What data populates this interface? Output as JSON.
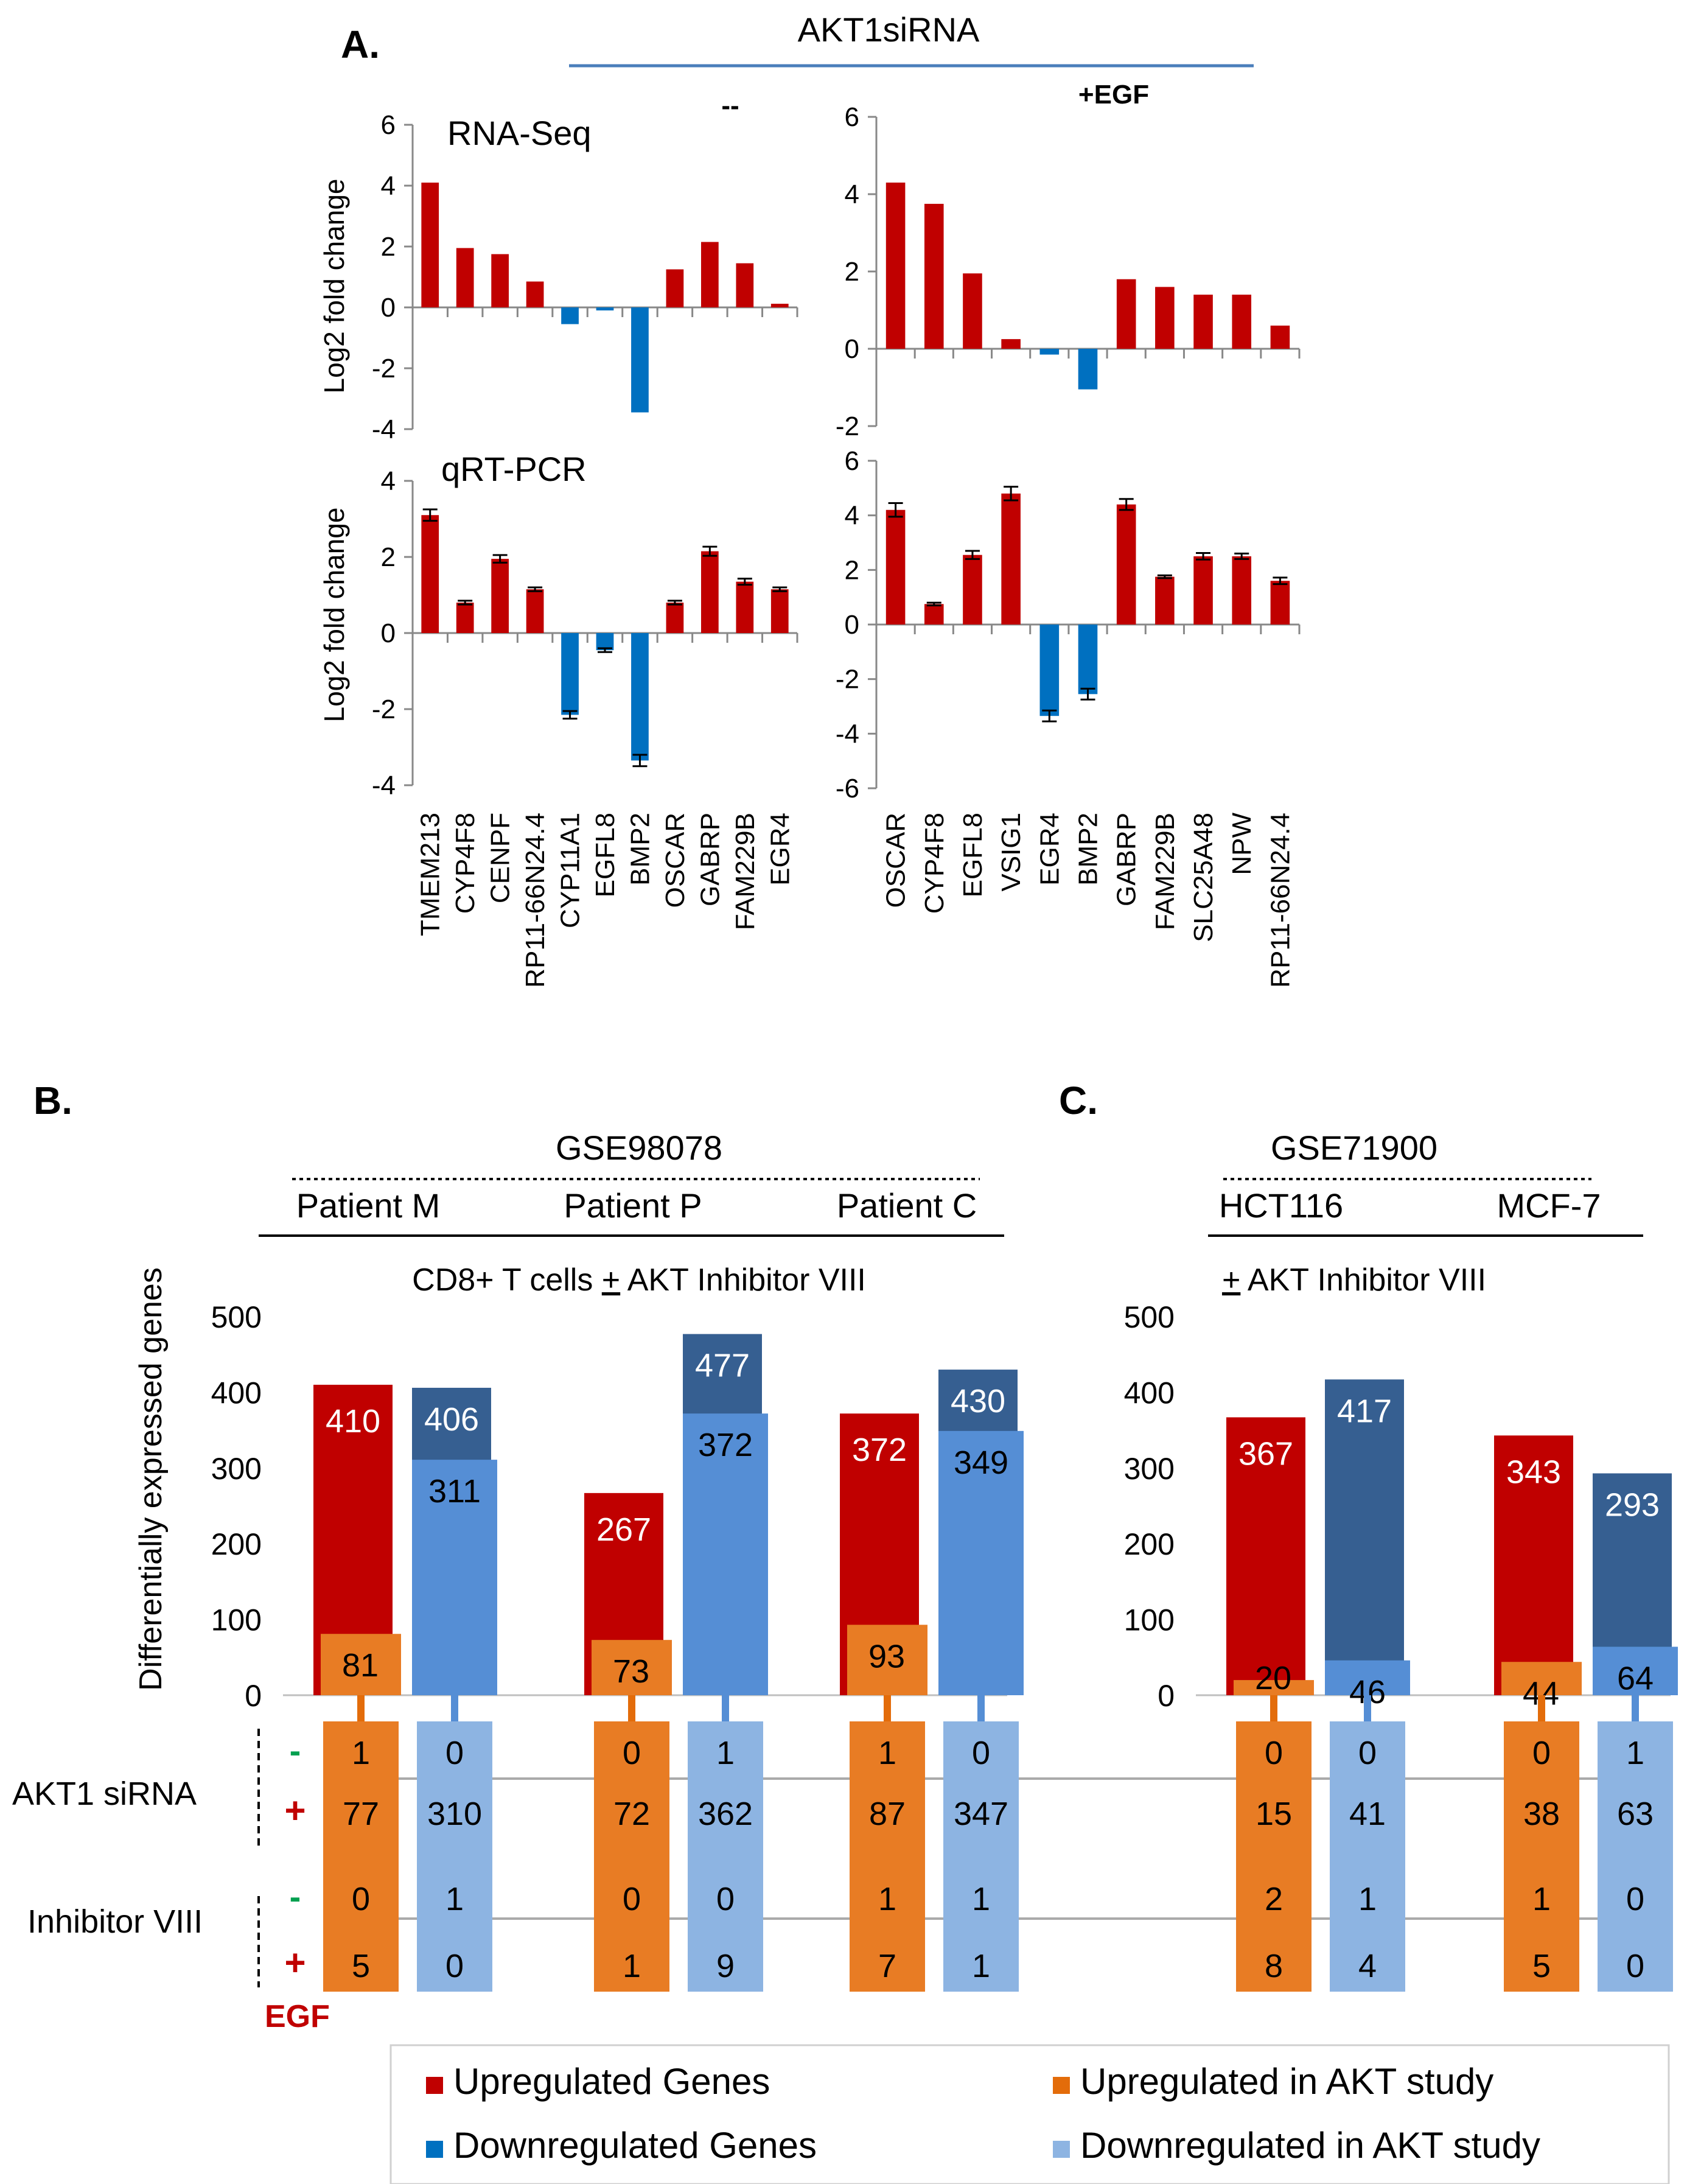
{
  "colors": {
    "up": "#c00000",
    "down": "#0070c0",
    "up_dark": "#c00000",
    "down_dark": "#365f91",
    "up_akt": "#e36c0a",
    "down_akt": "#558ed5",
    "up_akt_light": "#e87c24",
    "down_akt_light": "#8db4e2",
    "axis": "#888888",
    "text": "#000000",
    "plus": "#c00000",
    "minus": "#00a050",
    "rule_blue": "#4a7ebb"
  },
  "panel_a": {
    "label": "A.",
    "header": "AKT1siRNA",
    "cond_left": "--",
    "cond_right": "+EGF",
    "ylabel": "Log2 fold change",
    "method_top": "RNA-Seq",
    "method_bottom": "qRT-PCR"
  },
  "panel_b": {
    "label": "B.",
    "dataset": "GSE98078",
    "groups": [
      "Patient M",
      "Patient P",
      "Patient C"
    ],
    "treatment": "CD8+ T cells + AKT Inhibitor VIII",
    "treatment_prefix": "CD8+ T cells ",
    "treatment_pm": "+",
    "treatment_suffix": " AKT Inhibitor VIII",
    "ylabel": "Differentially expressed genes"
  },
  "panel_c": {
    "label": "C.",
    "dataset": "GSE71900",
    "groups": [
      "HCT116",
      "MCF-7"
    ],
    "treatment_pm": "+",
    "treatment_suffix": " AKT Inhibitor VIII"
  },
  "row_labels": {
    "siRNA": "AKT1 siRNA",
    "inhibitor": "Inhibitor VIII",
    "minus": "-",
    "plus": "+",
    "egf": "EGF"
  },
  "legend": [
    {
      "label": "Upregulated Genes",
      "color_key": "up"
    },
    {
      "label": "Upregulated in AKT study",
      "color_key": "up_akt"
    },
    {
      "label": "Downregulated Genes",
      "color_key": "down"
    },
    {
      "label": "Downregulated in AKT study",
      "color_key": "down_akt_light"
    }
  ],
  "chart_data": [
    {
      "id": "rnaseq_minus",
      "type": "bar",
      "title": "RNA-Seq",
      "ylabel": "Log2 fold change",
      "ylim": [
        -4,
        6
      ],
      "yticks": [
        -4,
        -2,
        0,
        2,
        4,
        6
      ],
      "categories": [
        "TMEM213",
        "CYP4F8",
        "CENPF",
        "RP11-66N24.4",
        "CYP11A1",
        "EGFL8",
        "BMP2",
        "OSCAR",
        "GABRP",
        "FAM229B",
        "EGR4"
      ],
      "values": [
        4.1,
        1.95,
        1.75,
        0.85,
        -0.55,
        -0.1,
        -3.45,
        1.25,
        2.15,
        1.45,
        0.12
      ]
    },
    {
      "id": "rnaseq_egf",
      "type": "bar",
      "title": "",
      "ylim": [
        -2,
        6
      ],
      "yticks": [
        -2,
        0,
        2,
        4,
        6
      ],
      "categories": [
        "OSCAR",
        "CYP4F8",
        "EGFL8",
        "VSIG1",
        "EGR4",
        "BMP2",
        "GABRP",
        "FAM229B",
        "SLC25A48",
        "NPW",
        "RP11-66N24.4"
      ],
      "values": [
        4.3,
        3.75,
        1.95,
        0.25,
        -0.15,
        -1.05,
        1.8,
        1.6,
        1.4,
        1.4,
        0.6
      ]
    },
    {
      "id": "qpcr_minus",
      "type": "bar",
      "title": "qRT-PCR",
      "ylabel": "Log2 fold change",
      "ylim": [
        -4,
        4
      ],
      "yticks": [
        -4,
        -2,
        0,
        2,
        4
      ],
      "categories": [
        "TMEM213",
        "CYP4F8",
        "CENPF",
        "RP11-66N24.4",
        "CYP11A1",
        "EGFL8",
        "BMP2",
        "OSCAR",
        "GABRP",
        "FAM229B",
        "EGR4"
      ],
      "values": [
        3.1,
        0.8,
        1.95,
        1.15,
        -2.15,
        -0.45,
        -3.35,
        0.8,
        2.15,
        1.35,
        1.15
      ],
      "errors": [
        0.15,
        0.05,
        0.1,
        0.05,
        0.1,
        0.05,
        0.15,
        0.05,
        0.12,
        0.08,
        0.05
      ]
    },
    {
      "id": "qpcr_egf",
      "type": "bar",
      "title": "",
      "ylim": [
        -6,
        6
      ],
      "yticks": [
        -6,
        -4,
        -2,
        0,
        2,
        4,
        6
      ],
      "categories": [
        "OSCAR",
        "CYP4F8",
        "EGFL8",
        "VSIG1",
        "EGR4",
        "BMP2",
        "GABRP",
        "FAM229B",
        "SLC25A48",
        "NPW",
        "RP11-66N24.4"
      ],
      "values": [
        4.2,
        0.75,
        2.55,
        4.8,
        -3.35,
        -2.55,
        4.4,
        1.75,
        2.5,
        2.5,
        1.6
      ],
      "errors": [
        0.25,
        0.05,
        0.15,
        0.25,
        0.2,
        0.2,
        0.2,
        0.05,
        0.12,
        0.1,
        0.12
      ]
    },
    {
      "id": "deg_gse98078",
      "type": "bar",
      "title": "GSE98078",
      "ylabel": "Differentially expressed genes",
      "ylim": [
        0,
        500
      ],
      "yticks": [
        0,
        100,
        200,
        300,
        400,
        500
      ],
      "categories": [
        "Patient M",
        "Patient P",
        "Patient C"
      ],
      "series": [
        {
          "name": "Upregulated Genes",
          "values": [
            410,
            267,
            372
          ]
        },
        {
          "name": "Downregulated Genes",
          "values": [
            406,
            477,
            430
          ]
        },
        {
          "name": "Upregulated in AKT study",
          "values": [
            81,
            73,
            93
          ]
        },
        {
          "name": "Downregulated in AKT study",
          "values": [
            311,
            372,
            349
          ]
        }
      ],
      "overlap_table": {
        "rows": [
          "AKT1 siRNA -",
          "AKT1 siRNA +",
          "Inhibitor VIII -",
          "Inhibitor VIII +"
        ],
        "up": [
          [
            1,
            77,
            0,
            5
          ],
          [
            0,
            72,
            0,
            1
          ],
          [
            1,
            87,
            1,
            7
          ]
        ],
        "down": [
          [
            0,
            310,
            1,
            0
          ],
          [
            1,
            362,
            0,
            9
          ],
          [
            0,
            347,
            1,
            1
          ]
        ]
      }
    },
    {
      "id": "deg_gse71900",
      "type": "bar",
      "title": "GSE71900",
      "ylim": [
        0,
        500
      ],
      "yticks": [
        0,
        100,
        200,
        300,
        400,
        500
      ],
      "categories": [
        "HCT116",
        "MCF-7"
      ],
      "series": [
        {
          "name": "Upregulated Genes",
          "values": [
            367,
            343
          ]
        },
        {
          "name": "Downregulated Genes",
          "values": [
            417,
            293
          ]
        },
        {
          "name": "Upregulated in AKT study",
          "values": [
            20,
            44
          ]
        },
        {
          "name": "Downregulated in AKT study",
          "values": [
            46,
            64
          ]
        }
      ],
      "overlap_table": {
        "rows": [
          "AKT1 siRNA -",
          "AKT1 siRNA +",
          "Inhibitor VIII -",
          "Inhibitor VIII +"
        ],
        "up": [
          [
            0,
            15,
            2,
            8
          ],
          [
            0,
            38,
            1,
            5
          ]
        ],
        "down": [
          [
            0,
            41,
            1,
            4
          ],
          [
            1,
            63,
            0,
            0
          ]
        ]
      }
    }
  ]
}
